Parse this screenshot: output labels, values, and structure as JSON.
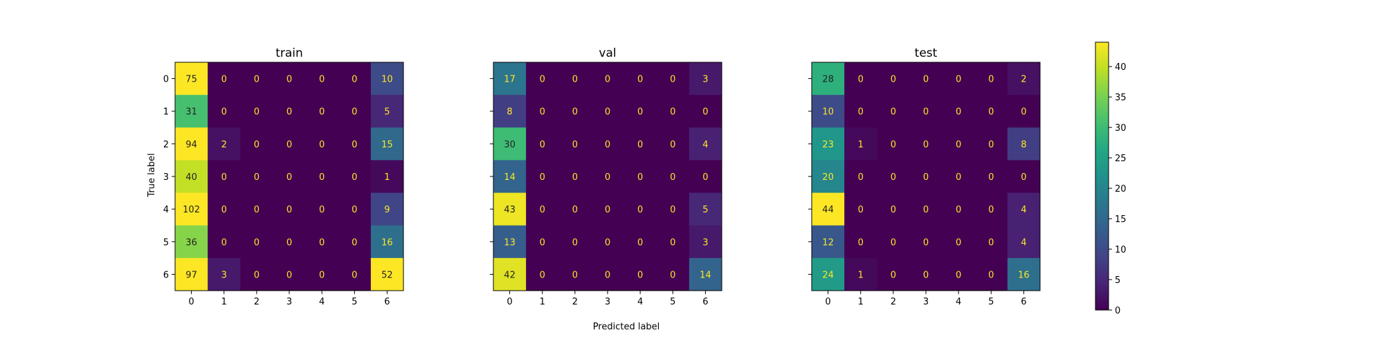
{
  "chart_data": {
    "type": "heatmap",
    "xlabel": "Predicted label",
    "ylabel": "True label",
    "class_labels": [
      "0",
      "1",
      "2",
      "3",
      "4",
      "5",
      "6"
    ],
    "colormap": "viridis",
    "colorbar": {
      "range": [
        0,
        44
      ],
      "ticks": [
        0,
        5,
        10,
        15,
        20,
        25,
        30,
        35,
        40
      ]
    },
    "panels": [
      {
        "title": "train",
        "matrix": [
          [
            75,
            0,
            0,
            0,
            0,
            0,
            10
          ],
          [
            31,
            0,
            0,
            0,
            0,
            0,
            5
          ],
          [
            94,
            2,
            0,
            0,
            0,
            0,
            15
          ],
          [
            40,
            0,
            0,
            0,
            0,
            0,
            1
          ],
          [
            102,
            0,
            0,
            0,
            0,
            0,
            9
          ],
          [
            36,
            0,
            0,
            0,
            0,
            0,
            16
          ],
          [
            97,
            3,
            0,
            0,
            0,
            0,
            52
          ]
        ]
      },
      {
        "title": "val",
        "matrix": [
          [
            17,
            0,
            0,
            0,
            0,
            0,
            3
          ],
          [
            8,
            0,
            0,
            0,
            0,
            0,
            0
          ],
          [
            30,
            0,
            0,
            0,
            0,
            0,
            4
          ],
          [
            14,
            0,
            0,
            0,
            0,
            0,
            0
          ],
          [
            43,
            0,
            0,
            0,
            0,
            0,
            5
          ],
          [
            13,
            0,
            0,
            0,
            0,
            0,
            3
          ],
          [
            42,
            0,
            0,
            0,
            0,
            0,
            14
          ]
        ]
      },
      {
        "title": "test",
        "matrix": [
          [
            28,
            0,
            0,
            0,
            0,
            0,
            2
          ],
          [
            10,
            0,
            0,
            0,
            0,
            0,
            0
          ],
          [
            23,
            1,
            0,
            0,
            0,
            0,
            8
          ],
          [
            20,
            0,
            0,
            0,
            0,
            0,
            0
          ],
          [
            44,
            0,
            0,
            0,
            0,
            0,
            4
          ],
          [
            12,
            0,
            0,
            0,
            0,
            0,
            4
          ],
          [
            24,
            1,
            0,
            0,
            0,
            0,
            16
          ]
        ]
      }
    ]
  }
}
